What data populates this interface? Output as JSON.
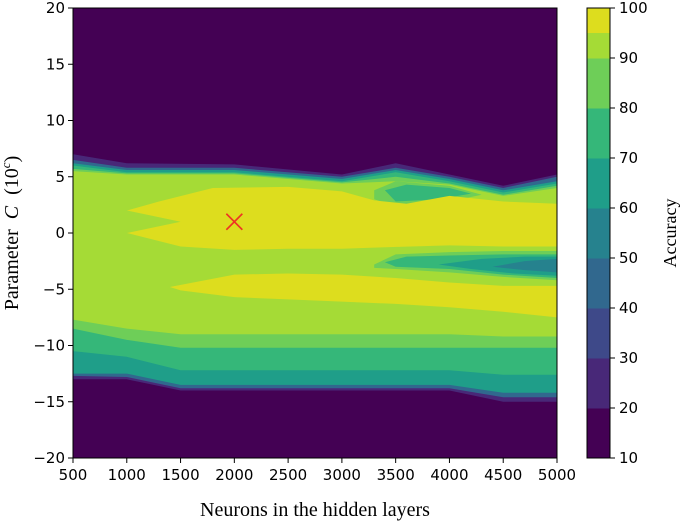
{
  "chart_data": {
    "type": "heatmap",
    "title": "",
    "xlabel": "Neurons in the hidden layers",
    "ylabel": "Parameter",
    "ylabel_symbol": "C",
    "ylabel_unit_base": "10",
    "ylabel_unit_exp": "c",
    "xlim": [
      500,
      5000
    ],
    "ylim": [
      -20,
      20
    ],
    "xticks": [
      500,
      1000,
      1500,
      2000,
      2500,
      3000,
      3500,
      4000,
      4500,
      5000
    ],
    "xtick_labels": [
      "500",
      "1000",
      "1500",
      "2000",
      "2500",
      "3000",
      "3500",
      "4000",
      "4500",
      "5000"
    ],
    "yticks": [
      20,
      15,
      10,
      5,
      0,
      -5,
      -10,
      -15,
      -20
    ],
    "ytick_labels": [
      "20",
      "15",
      "10",
      "5",
      "0",
      "−5",
      "−10",
      "−15",
      "−20"
    ],
    "colorbar": {
      "label": "Accuracy",
      "ticks": [
        10,
        20,
        30,
        40,
        50,
        60,
        70,
        80,
        90,
        100
      ],
      "tick_labels": [
        "10",
        "20",
        "30",
        "40",
        "50",
        "60",
        "70",
        "80",
        "90",
        "100"
      ],
      "levels": [
        10,
        15,
        20,
        25,
        30,
        35,
        40,
        45,
        50,
        55,
        60,
        65,
        70,
        75,
        80,
        85,
        90,
        95,
        100
      ],
      "colors": [
        "#440154",
        "#482878",
        "#3e4989",
        "#31688e",
        "#26828e",
        "#1f9e89",
        "#35b779",
        "#6ece58",
        "#a5db36",
        "#dddd1e"
      ]
    },
    "best_marker": {
      "x": 2000,
      "y": 1,
      "symbol": "x",
      "color": "#ee3322"
    },
    "regions": [
      {
        "level": 20,
        "color": "#482878",
        "top": [
          [
            500,
            7
          ],
          [
            1000,
            6.2
          ],
          [
            2000,
            6.1
          ],
          [
            3000,
            5.2
          ],
          [
            3500,
            6.2
          ],
          [
            4000,
            5.2
          ],
          [
            4500,
            4.2
          ],
          [
            5000,
            5.2
          ]
        ],
        "bottom": [
          [
            500,
            -13
          ],
          [
            1000,
            -13
          ],
          [
            1500,
            -14
          ],
          [
            2000,
            -14
          ],
          [
            3000,
            -14
          ],
          [
            4000,
            -14
          ],
          [
            4500,
            -15
          ],
          [
            5000,
            -15
          ]
        ]
      },
      {
        "level": 40,
        "color": "#31688e",
        "top": [
          [
            500,
            6.5
          ],
          [
            1000,
            5.8
          ],
          [
            2000,
            5.8
          ],
          [
            3000,
            5
          ],
          [
            3500,
            5.8
          ],
          [
            4000,
            5
          ],
          [
            4500,
            4
          ],
          [
            5000,
            5
          ]
        ],
        "bottom": [
          [
            500,
            -12.7
          ],
          [
            1000,
            -12.8
          ],
          [
            1500,
            -13.8
          ],
          [
            2000,
            -13.8
          ],
          [
            3000,
            -13.8
          ],
          [
            4000,
            -13.8
          ],
          [
            4500,
            -14.6
          ],
          [
            5000,
            -14.6
          ]
        ]
      },
      {
        "level": 60,
        "color": "#1f9e89",
        "top": [
          [
            500,
            6.2
          ],
          [
            1000,
            5.6
          ],
          [
            2000,
            5.6
          ],
          [
            3000,
            4.8
          ],
          [
            3500,
            5.6
          ],
          [
            4000,
            4.8
          ],
          [
            4500,
            3.8
          ],
          [
            5000,
            4.6
          ]
        ],
        "bottom": [
          [
            500,
            -12.5
          ],
          [
            1000,
            -12.5
          ],
          [
            1500,
            -13.5
          ],
          [
            2000,
            -13.5
          ],
          [
            3000,
            -13.5
          ],
          [
            4000,
            -13.5
          ],
          [
            4500,
            -14.2
          ],
          [
            5000,
            -14.2
          ]
        ]
      },
      {
        "level": 70,
        "color": "#35b779",
        "top": [
          [
            500,
            6
          ],
          [
            1000,
            5.4
          ],
          [
            2000,
            5.4
          ],
          [
            3000,
            4.6
          ],
          [
            3500,
            5.4
          ],
          [
            4000,
            4.6
          ],
          [
            4500,
            3.6
          ],
          [
            5000,
            4.4
          ]
        ],
        "bottom": [
          [
            500,
            -10.5
          ],
          [
            1000,
            -11
          ],
          [
            1500,
            -12.2
          ],
          [
            2000,
            -12.2
          ],
          [
            3000,
            -12.2
          ],
          [
            4000,
            -12.2
          ],
          [
            4500,
            -12.6
          ],
          [
            5000,
            -12.6
          ]
        ]
      },
      {
        "level": 80,
        "color": "#6ece58",
        "top": [
          [
            500,
            5.7
          ],
          [
            1000,
            5.3
          ],
          [
            2000,
            5.3
          ],
          [
            3000,
            4.5
          ],
          [
            3500,
            5
          ],
          [
            4000,
            4.4
          ],
          [
            4500,
            3.4
          ],
          [
            5000,
            4.2
          ]
        ],
        "bottom": [
          [
            500,
            -8.5
          ],
          [
            1000,
            -9.5
          ],
          [
            1500,
            -10.2
          ],
          [
            2000,
            -10.2
          ],
          [
            3000,
            -10.2
          ],
          [
            4000,
            -10.2
          ],
          [
            4500,
            -10.2
          ],
          [
            5000,
            -10.2
          ]
        ]
      },
      {
        "level": 85,
        "color": "#a5db36",
        "top": [
          [
            500,
            5.5
          ],
          [
            1000,
            5.2
          ],
          [
            2000,
            5.2
          ],
          [
            3000,
            4.4
          ],
          [
            3500,
            4.6
          ],
          [
            4000,
            4.3
          ],
          [
            4500,
            3.3
          ],
          [
            5000,
            4
          ]
        ],
        "bottom": [
          [
            500,
            -7.7
          ],
          [
            1000,
            -8.5
          ],
          [
            1500,
            -9
          ],
          [
            2000,
            -9
          ],
          [
            3000,
            -9
          ],
          [
            4000,
            -9
          ],
          [
            4500,
            -9.2
          ],
          [
            5000,
            -9.2
          ]
        ]
      }
    ],
    "islands": [
      {
        "level": 75,
        "color": "#6ece58",
        "points": [
          [
            3300,
            3.8
          ],
          [
            3500,
            4.6
          ],
          [
            4000,
            4.2
          ],
          [
            4300,
            3.4
          ],
          [
            4000,
            2.8
          ],
          [
            3500,
            2.4
          ],
          [
            3300,
            3
          ]
        ]
      },
      {
        "level": 75,
        "color": "#6ece58",
        "points": [
          [
            3300,
            -2.8
          ],
          [
            3500,
            -1.9
          ],
          [
            4000,
            -1.7
          ],
          [
            4500,
            -1.6
          ],
          [
            5000,
            -1.6
          ],
          [
            5000,
            -4.2
          ],
          [
            4500,
            -3.9
          ],
          [
            4000,
            -3.5
          ],
          [
            3500,
            -3.2
          ],
          [
            3300,
            -3.1
          ]
        ]
      },
      {
        "level": 70,
        "color": "#35b779",
        "points": [
          [
            3400,
            3.8
          ],
          [
            3600,
            4.3
          ],
          [
            4000,
            4
          ],
          [
            4200,
            3.5
          ],
          [
            3900,
            3
          ],
          [
            3500,
            2.8
          ]
        ]
      },
      {
        "level": 70,
        "color": "#35b779",
        "points": [
          [
            3400,
            -2.6
          ],
          [
            3600,
            -2.1
          ],
          [
            4000,
            -2
          ],
          [
            4500,
            -1.9
          ],
          [
            5000,
            -1.9
          ],
          [
            5000,
            -4
          ],
          [
            4500,
            -3.7
          ],
          [
            4000,
            -3.2
          ],
          [
            3500,
            -3
          ]
        ]
      },
      {
        "level": 60,
        "color": "#1f9e89",
        "points": [
          [
            3900,
            -2.8
          ],
          [
            4300,
            -2.3
          ],
          [
            4700,
            -2.1
          ],
          [
            5000,
            -2.1
          ],
          [
            5000,
            -3.8
          ],
          [
            4600,
            -3.6
          ],
          [
            4200,
            -3.2
          ]
        ]
      },
      {
        "level": 50,
        "color": "#26828e",
        "points": [
          [
            4400,
            -3
          ],
          [
            4700,
            -2.5
          ],
          [
            5000,
            -2.3
          ],
          [
            5000,
            -3.5
          ],
          [
            4700,
            -3.3
          ]
        ]
      },
      {
        "level": 90,
        "color": "#dddd1e",
        "points": [
          [
            1000,
            2
          ],
          [
            1300,
            2.8
          ],
          [
            1800,
            4
          ],
          [
            2500,
            4.1
          ],
          [
            3000,
            3.7
          ],
          [
            3300,
            2.9
          ],
          [
            3600,
            2.6
          ],
          [
            4000,
            3.3
          ],
          [
            4500,
            2.8
          ],
          [
            5000,
            2.6
          ],
          [
            5000,
            -1.2
          ],
          [
            4500,
            -1.2
          ],
          [
            4000,
            -1.1
          ],
          [
            3300,
            -1.3
          ],
          [
            3000,
            -1.4
          ],
          [
            2500,
            -1.4
          ],
          [
            2000,
            -1.5
          ],
          [
            1500,
            -1.2
          ],
          [
            1000,
            0
          ],
          [
            1500,
            1
          ]
        ]
      },
      {
        "level": 90,
        "color": "#dddd1e",
        "points": [
          [
            1400,
            -4.8
          ],
          [
            2000,
            -3.7
          ],
          [
            2500,
            -3.6
          ],
          [
            3000,
            -3.7
          ],
          [
            3500,
            -4
          ],
          [
            4000,
            -4.4
          ],
          [
            4500,
            -4.7
          ],
          [
            5000,
            -4.7
          ],
          [
            5000,
            -7.5
          ],
          [
            4500,
            -7
          ],
          [
            4000,
            -6.6
          ],
          [
            3500,
            -6.3
          ],
          [
            3000,
            -6.1
          ],
          [
            2500,
            -5.9
          ],
          [
            2000,
            -5.7
          ],
          [
            1500,
            -5.1
          ]
        ]
      }
    ]
  }
}
